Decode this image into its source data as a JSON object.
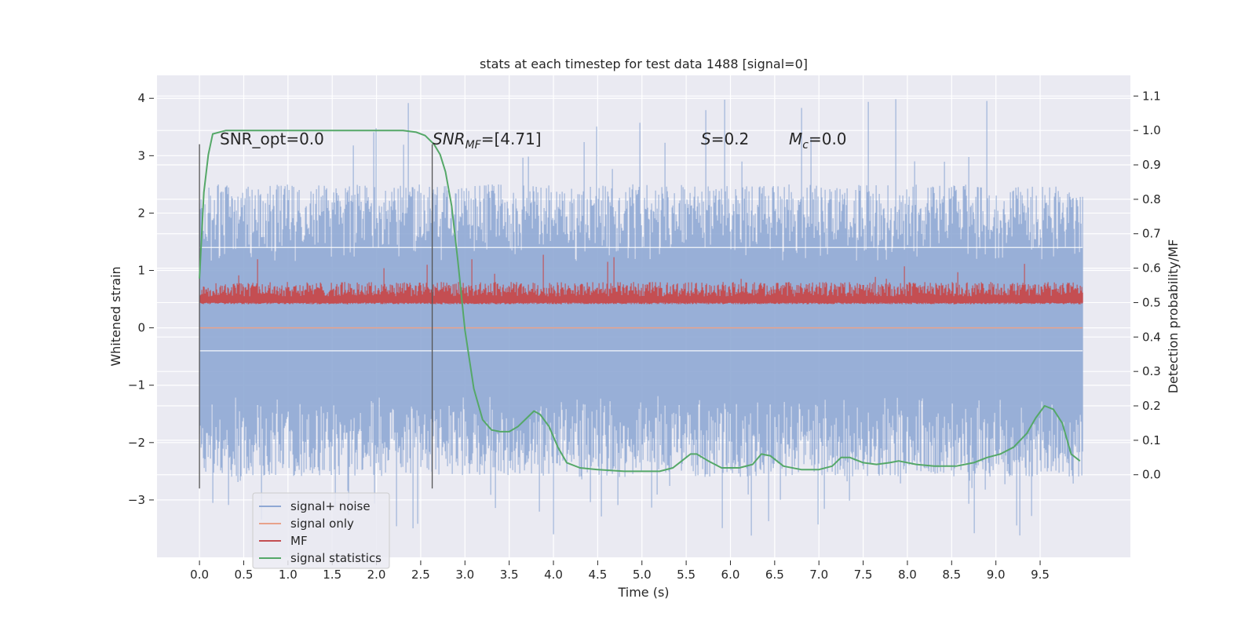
{
  "chart_data": {
    "type": "line",
    "title": "stats at each timestep for test data 1488 [signal=0]",
    "xlabel": "Time (s)",
    "ylabel": "Whitened strain",
    "ylabel_right": "Detection probability/MF",
    "xlim": [
      -0.48,
      10.52
    ],
    "ylim": [
      -4.0,
      4.4
    ],
    "ylim_right": [
      -0.24,
      1.16
    ],
    "x_ticks": [
      "0.0",
      "0.5",
      "1.0",
      "1.5",
      "2.0",
      "2.5",
      "3.0",
      "3.5",
      "4.0",
      "4.5",
      "5.0",
      "5.5",
      "6.0",
      "6.5",
      "7.0",
      "7.5",
      "8.0",
      "8.5",
      "9.0",
      "9.5"
    ],
    "y_ticks": [
      "−3",
      "−2",
      "−1",
      "0",
      "1",
      "2",
      "3",
      "4"
    ],
    "y_ticks_right": [
      "0.0",
      "0.1",
      "0.2",
      "0.3",
      "0.4",
      "0.5",
      "0.6",
      "0.7",
      "0.8",
      "0.9",
      "1.0",
      "1.1"
    ],
    "grid": true,
    "legend_position": "lower-left",
    "annotations": {
      "snr_opt": "SNR_opt=0.0",
      "snr_mf_base": "SNR",
      "snr_mf_sub": "MF",
      "snr_mf_tail": "=[4.71]",
      "s_var": "S",
      "s_val": "=0.2",
      "mc_var": "M",
      "mc_sub": "c",
      "mc_val": "=0.0"
    },
    "vertical_markers_x": [
      0.0,
      2.63
    ],
    "series": [
      {
        "name": "signal+ noise",
        "color": "#8fa8d4",
        "description_envelope": {
          "x_range": [
            0.0,
            9.98
          ],
          "typical_max": 2.5,
          "typical_min": -2.6,
          "peak_max": 4.05,
          "peak_min": -3.65
        }
      },
      {
        "name": "signal only",
        "color": "#e8a28a",
        "x": [
          0.0,
          9.98
        ],
        "y": [
          0.0,
          0.0
        ]
      },
      {
        "name": "MF",
        "color": "#c44e52",
        "axis": "right",
        "description_envelope": {
          "x_range": [
            0.0,
            9.98
          ],
          "base": 0.5,
          "typical_max": 0.56,
          "peak_max": 0.64
        }
      },
      {
        "name": "signal statistics",
        "color": "#55a868",
        "axis": "right",
        "x": [
          0.0,
          0.05,
          0.1,
          0.15,
          0.3,
          0.6,
          1.0,
          1.5,
          2.0,
          2.3,
          2.45,
          2.55,
          2.65,
          2.72,
          2.78,
          2.85,
          2.92,
          3.0,
          3.1,
          3.2,
          3.3,
          3.4,
          3.5,
          3.6,
          3.7,
          3.78,
          3.85,
          3.95,
          4.05,
          4.15,
          4.3,
          4.5,
          4.8,
          5.0,
          5.2,
          5.35,
          5.45,
          5.55,
          5.62,
          5.75,
          5.9,
          6.1,
          6.25,
          6.35,
          6.45,
          6.6,
          6.8,
          7.0,
          7.15,
          7.25,
          7.35,
          7.5,
          7.65,
          7.8,
          7.9,
          8.1,
          8.3,
          8.55,
          8.75,
          8.9,
          9.05,
          9.2,
          9.35,
          9.45,
          9.55,
          9.65,
          9.75,
          9.85,
          9.95
        ],
        "y": [
          0.57,
          0.82,
          0.93,
          0.99,
          1.0,
          1.0,
          1.0,
          1.0,
          1.0,
          1.0,
          0.995,
          0.985,
          0.96,
          0.93,
          0.88,
          0.78,
          0.62,
          0.42,
          0.25,
          0.16,
          0.13,
          0.125,
          0.125,
          0.14,
          0.165,
          0.185,
          0.175,
          0.14,
          0.08,
          0.035,
          0.02,
          0.015,
          0.01,
          0.01,
          0.01,
          0.02,
          0.04,
          0.06,
          0.06,
          0.04,
          0.02,
          0.02,
          0.03,
          0.06,
          0.055,
          0.025,
          0.015,
          0.015,
          0.025,
          0.05,
          0.05,
          0.035,
          0.03,
          0.035,
          0.04,
          0.03,
          0.025,
          0.025,
          0.035,
          0.05,
          0.06,
          0.08,
          0.12,
          0.165,
          0.2,
          0.19,
          0.15,
          0.06,
          0.04
        ]
      }
    ]
  }
}
